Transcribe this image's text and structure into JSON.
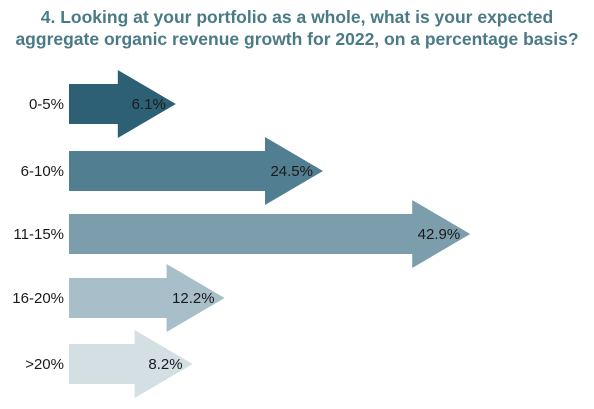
{
  "chart_data": {
    "type": "bar",
    "orientation": "horizontal",
    "title": "4. Looking at your portfolio as a whole, what is your expected aggregate organic revenue growth for 2022, on a percentage basis?",
    "title_lines": [
      "4. Looking at your portfolio as a whole, what is your expected",
      "aggregate organic revenue growth for 2022, on a percentage basis?"
    ],
    "categories": [
      "0-5%",
      "6-10%",
      "11-15%",
      "16-20%",
      ">20%"
    ],
    "values": [
      6.1,
      24.5,
      42.9,
      12.2,
      8.2
    ],
    "value_labels": [
      "6.1%",
      "24.5%",
      "42.9%",
      "12.2%",
      "8.2%"
    ],
    "colors": [
      "#2e6075",
      "#527e92",
      "#7c9eac",
      "#a8bfc9",
      "#d4dfe4"
    ],
    "title_color": "#4a7a86",
    "grid": false,
    "legend": "none"
  }
}
